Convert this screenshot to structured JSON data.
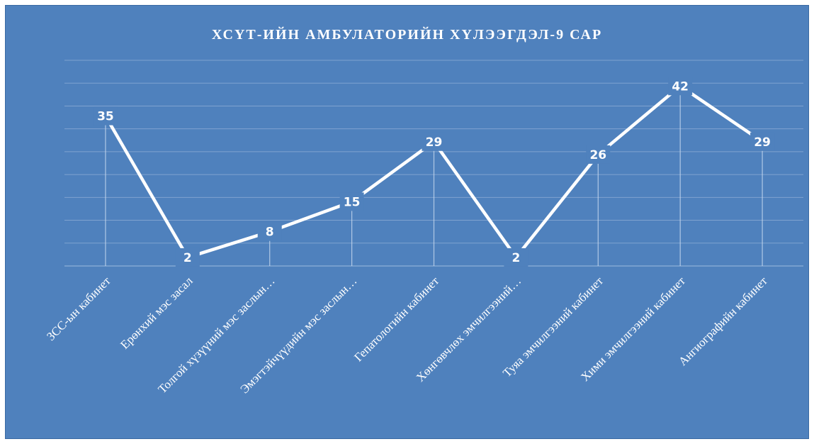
{
  "chart_data": {
    "type": "line",
    "title": "ХСҮТ-ИЙН АМБУЛАТОРИЙН ХҮЛЭЭГДЭЛ-9 САР",
    "categories": [
      "ЗСС-ын кабинет",
      "Ерөнхий мэс засал",
      "Толгой хүзүүний мэс заслын…",
      "Эмэгтэйчүүдийн мэс заслын…",
      "Гепатологийн кабинет",
      "Хөнгөвчлөх эмчилгээний…",
      "Туяа эмчилгээний кабинет",
      "Хими эмчилгээний кабинет",
      "Ангиографийн кабинет"
    ],
    "series": [
      {
        "values": [
          35,
          2,
          8,
          15,
          29,
          2,
          26,
          42,
          29
        ]
      }
    ],
    "ylim": [
      0,
      48
    ],
    "grid": true,
    "legend": "none",
    "data_labels": true,
    "colors": {
      "background": "#4f81bd",
      "line": "#ffffff",
      "gridline": "#7fa3d0"
    }
  }
}
